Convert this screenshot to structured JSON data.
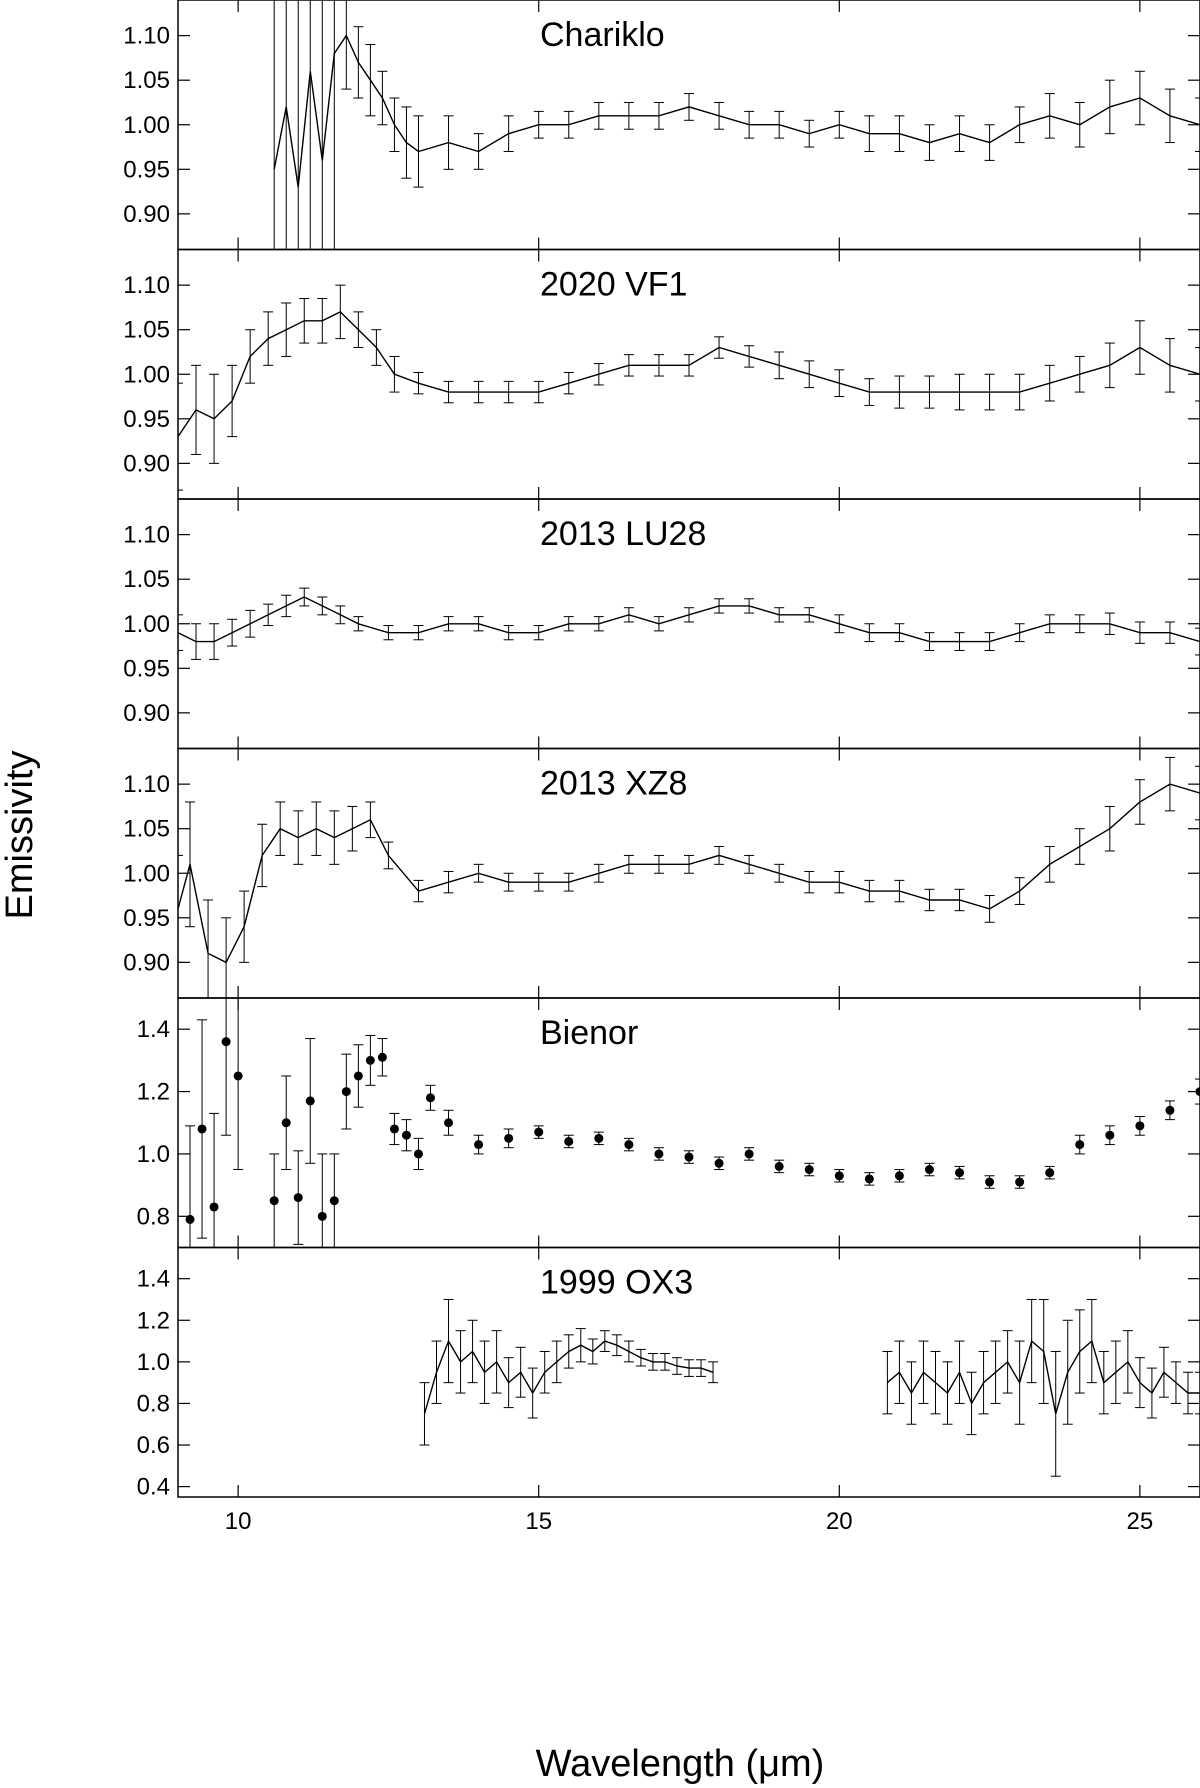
{
  "figure": {
    "xlabel": "Wavelength (μm)",
    "ylabel": "Emissivity"
  },
  "chart_data": [
    {
      "type": "line",
      "title": "Chariklo",
      "xlim": [
        9,
        26
      ],
      "ylim": [
        0.86,
        1.14
      ],
      "yticks": [
        "0.90",
        "0.95",
        "1.00",
        "1.05",
        "1.10"
      ],
      "xticks": [
        "10",
        "15",
        "20",
        "25"
      ],
      "xticks_labeled": false,
      "marker": "none",
      "series": [
        {
          "x": [
            10.6,
            10.8,
            11.0,
            11.2,
            11.4,
            11.6,
            11.8,
            12.0,
            12.2,
            12.4,
            12.6,
            12.8,
            13.0,
            13.5,
            14.0,
            14.5,
            15.0,
            15.5,
            16.0,
            16.5,
            17.0,
            17.5,
            18.0,
            18.5,
            19.0,
            19.5,
            20.0,
            20.5,
            21.0,
            21.5,
            22.0,
            22.5,
            23.0,
            23.5,
            24.0,
            24.5,
            25.0,
            25.5,
            26.0
          ],
          "y": [
            0.95,
            1.02,
            0.93,
            1.06,
            0.96,
            1.08,
            1.1,
            1.07,
            1.05,
            1.03,
            1.0,
            0.98,
            0.97,
            0.98,
            0.97,
            0.99,
            1.0,
            1.0,
            1.01,
            1.01,
            1.01,
            1.02,
            1.01,
            1.0,
            1.0,
            0.99,
            1.0,
            0.99,
            0.99,
            0.98,
            0.99,
            0.98,
            1.0,
            1.01,
            1.0,
            1.02,
            1.03,
            1.01,
            1.0
          ],
          "err": [
            0.3,
            0.3,
            0.3,
            0.3,
            0.3,
            0.3,
            0.06,
            0.04,
            0.04,
            0.03,
            0.03,
            0.04,
            0.04,
            0.03,
            0.02,
            0.02,
            0.015,
            0.015,
            0.015,
            0.015,
            0.015,
            0.015,
            0.015,
            0.015,
            0.015,
            0.015,
            0.015,
            0.02,
            0.02,
            0.02,
            0.02,
            0.02,
            0.02,
            0.025,
            0.025,
            0.03,
            0.03,
            0.03,
            0.03
          ]
        }
      ]
    },
    {
      "type": "line",
      "title": "2020 VF1",
      "xlim": [
        9,
        26
      ],
      "ylim": [
        0.86,
        1.14
      ],
      "yticks": [
        "0.90",
        "0.95",
        "1.00",
        "1.05",
        "1.10"
      ],
      "xticks": [
        "10",
        "15",
        "20",
        "25"
      ],
      "xticks_labeled": false,
      "marker": "none",
      "series": [
        {
          "x": [
            9.0,
            9.3,
            9.6,
            9.9,
            10.2,
            10.5,
            10.8,
            11.1,
            11.4,
            11.7,
            12.0,
            12.3,
            12.6,
            13.0,
            13.5,
            14.0,
            14.5,
            15.0,
            15.5,
            16.0,
            16.5,
            17.0,
            17.5,
            18.0,
            18.5,
            19.0,
            19.5,
            20.0,
            20.5,
            21.0,
            21.5,
            22.0,
            22.5,
            23.0,
            23.5,
            24.0,
            24.5,
            25.0,
            25.5,
            26.0
          ],
          "y": [
            0.93,
            0.96,
            0.95,
            0.97,
            1.02,
            1.04,
            1.05,
            1.06,
            1.06,
            1.07,
            1.05,
            1.03,
            1.0,
            0.99,
            0.98,
            0.98,
            0.98,
            0.98,
            0.99,
            1.0,
            1.01,
            1.01,
            1.01,
            1.03,
            1.02,
            1.01,
            1.0,
            0.99,
            0.98,
            0.98,
            0.98,
            0.98,
            0.98,
            0.98,
            0.99,
            1.0,
            1.01,
            1.03,
            1.01,
            1.0
          ],
          "err": [
            0.06,
            0.05,
            0.05,
            0.04,
            0.03,
            0.03,
            0.03,
            0.025,
            0.025,
            0.03,
            0.02,
            0.02,
            0.02,
            0.012,
            0.012,
            0.012,
            0.012,
            0.012,
            0.012,
            0.012,
            0.012,
            0.012,
            0.012,
            0.012,
            0.012,
            0.015,
            0.015,
            0.015,
            0.015,
            0.018,
            0.018,
            0.02,
            0.02,
            0.02,
            0.02,
            0.02,
            0.025,
            0.03,
            0.03,
            0.03
          ]
        }
      ]
    },
    {
      "type": "line",
      "title": "2013 LU28",
      "xlim": [
        9,
        26
      ],
      "ylim": [
        0.86,
        1.14
      ],
      "yticks": [
        "0.90",
        "0.95",
        "1.00",
        "1.05",
        "1.10"
      ],
      "xticks": [
        "10",
        "15",
        "20",
        "25"
      ],
      "xticks_labeled": false,
      "marker": "none",
      "series": [
        {
          "x": [
            9.0,
            9.3,
            9.6,
            9.9,
            10.2,
            10.5,
            10.8,
            11.1,
            11.4,
            11.7,
            12.0,
            12.5,
            13.0,
            13.5,
            14.0,
            14.5,
            15.0,
            15.5,
            16.0,
            16.5,
            17.0,
            17.5,
            18.0,
            18.5,
            19.0,
            19.5,
            20.0,
            20.5,
            21.0,
            21.5,
            22.0,
            22.5,
            23.0,
            23.5,
            24.0,
            24.5,
            25.0,
            25.5,
            26.0
          ],
          "y": [
            0.99,
            0.98,
            0.98,
            0.99,
            1.0,
            1.01,
            1.02,
            1.03,
            1.02,
            1.01,
            1.0,
            0.99,
            0.99,
            1.0,
            1.0,
            0.99,
            0.99,
            1.0,
            1.0,
            1.01,
            1.0,
            1.01,
            1.02,
            1.02,
            1.01,
            1.01,
            1.0,
            0.99,
            0.99,
            0.98,
            0.98,
            0.98,
            0.99,
            1.0,
            1.0,
            1.0,
            0.99,
            0.99,
            0.98
          ],
          "err": [
            0.02,
            0.02,
            0.02,
            0.015,
            0.015,
            0.012,
            0.012,
            0.01,
            0.01,
            0.01,
            0.008,
            0.008,
            0.008,
            0.008,
            0.008,
            0.008,
            0.008,
            0.008,
            0.008,
            0.008,
            0.008,
            0.008,
            0.008,
            0.008,
            0.008,
            0.008,
            0.01,
            0.01,
            0.01,
            0.01,
            0.01,
            0.01,
            0.01,
            0.01,
            0.01,
            0.012,
            0.012,
            0.012,
            0.015
          ]
        }
      ]
    },
    {
      "type": "line",
      "title": "2013 XZ8",
      "xlim": [
        9,
        26
      ],
      "ylim": [
        0.86,
        1.14
      ],
      "yticks": [
        "0.90",
        "0.95",
        "1.00",
        "1.05",
        "1.10"
      ],
      "xticks": [
        "10",
        "15",
        "20",
        "25"
      ],
      "xticks_labeled": false,
      "marker": "none",
      "series": [
        {
          "x": [
            9.0,
            9.2,
            9.5,
            9.8,
            10.1,
            10.4,
            10.7,
            11.0,
            11.3,
            11.6,
            11.9,
            12.2,
            12.5,
            13.0,
            13.5,
            14.0,
            14.5,
            15.0,
            15.5,
            16.0,
            16.5,
            17.0,
            17.5,
            18.0,
            18.5,
            19.0,
            19.5,
            20.0,
            20.5,
            21.0,
            21.5,
            22.0,
            22.5,
            23.0,
            23.5,
            24.0,
            24.5,
            25.0,
            25.5,
            26.0
          ],
          "y": [
            0.96,
            1.01,
            0.91,
            0.9,
            0.94,
            1.02,
            1.05,
            1.04,
            1.05,
            1.04,
            1.05,
            1.06,
            1.02,
            0.98,
            0.99,
            1.0,
            0.99,
            0.99,
            0.99,
            1.0,
            1.01,
            1.01,
            1.01,
            1.02,
            1.01,
            1.0,
            0.99,
            0.99,
            0.98,
            0.98,
            0.97,
            0.97,
            0.96,
            0.98,
            1.01,
            1.03,
            1.05,
            1.08,
            1.1,
            1.09
          ],
          "err": [
            0.06,
            0.07,
            0.06,
            0.05,
            0.04,
            0.035,
            0.03,
            0.03,
            0.03,
            0.03,
            0.025,
            0.02,
            0.015,
            0.012,
            0.012,
            0.01,
            0.01,
            0.01,
            0.01,
            0.01,
            0.01,
            0.01,
            0.01,
            0.01,
            0.01,
            0.01,
            0.012,
            0.012,
            0.012,
            0.012,
            0.012,
            0.012,
            0.015,
            0.015,
            0.02,
            0.02,
            0.025,
            0.025,
            0.03,
            0.03
          ]
        }
      ]
    },
    {
      "type": "scatter",
      "title": "Bienor",
      "xlim": [
        9,
        26
      ],
      "ylim": [
        0.7,
        1.5
      ],
      "yticks": [
        "0.8",
        "1.0",
        "1.2",
        "1.4"
      ],
      "xticks": [
        "10",
        "15",
        "20",
        "25"
      ],
      "xticks_labeled": false,
      "marker": "dot",
      "series": [
        {
          "x": [
            9.2,
            9.4,
            9.6,
            9.8,
            10.0,
            10.6,
            10.8,
            11.0,
            11.2,
            11.4,
            11.6,
            11.8,
            12.0,
            12.2,
            12.4,
            12.6,
            12.8,
            13.0,
            13.2,
            13.5,
            14.0,
            14.5,
            15.0,
            15.5,
            16.0,
            16.5,
            17.0,
            17.5,
            18.0,
            18.5,
            19.0,
            19.5,
            20.0,
            20.5,
            21.0,
            21.5,
            22.0,
            22.5,
            23.0,
            23.5,
            24.0,
            24.5,
            25.0,
            25.5,
            26.0
          ],
          "y": [
            0.79,
            1.08,
            0.83,
            1.36,
            1.25,
            0.85,
            1.1,
            0.86,
            1.17,
            0.8,
            0.85,
            1.2,
            1.25,
            1.3,
            1.31,
            1.08,
            1.06,
            1.0,
            1.18,
            1.1,
            1.03,
            1.05,
            1.07,
            1.04,
            1.05,
            1.03,
            1.0,
            0.99,
            0.97,
            1.0,
            0.96,
            0.95,
            0.93,
            0.92,
            0.93,
            0.95,
            0.94,
            0.91,
            0.91,
            0.94,
            1.03,
            1.06,
            1.09,
            1.14,
            1.2
          ],
          "err": [
            0.3,
            0.35,
            0.3,
            0.3,
            0.3,
            0.15,
            0.15,
            0.15,
            0.2,
            0.2,
            0.15,
            0.12,
            0.1,
            0.08,
            0.06,
            0.05,
            0.05,
            0.05,
            0.04,
            0.04,
            0.03,
            0.03,
            0.02,
            0.02,
            0.02,
            0.02,
            0.02,
            0.02,
            0.02,
            0.02,
            0.02,
            0.02,
            0.02,
            0.02,
            0.02,
            0.02,
            0.02,
            0.02,
            0.02,
            0.02,
            0.03,
            0.03,
            0.03,
            0.03,
            0.04
          ]
        }
      ]
    },
    {
      "type": "line",
      "title": "1999 OX3",
      "xlim": [
        9,
        26
      ],
      "ylim": [
        0.35,
        1.55
      ],
      "yticks": [
        "0.4",
        "0.6",
        "0.8",
        "1.0",
        "1.2",
        "1.4"
      ],
      "xticks": [
        "10",
        "15",
        "20",
        "25"
      ],
      "xticks_labeled": true,
      "marker": "none",
      "series": [
        {
          "x": [
            13.1,
            13.3,
            13.5,
            13.7,
            13.9,
            14.1,
            14.3,
            14.5,
            14.7,
            14.9,
            15.1,
            15.3,
            15.5,
            15.7,
            15.9,
            16.1,
            16.3,
            16.5,
            16.7,
            16.9,
            17.1,
            17.3,
            17.5,
            17.7,
            17.9
          ],
          "y": [
            0.75,
            0.95,
            1.1,
            1.0,
            1.05,
            0.95,
            1.0,
            0.9,
            0.95,
            0.85,
            0.95,
            1.0,
            1.05,
            1.08,
            1.05,
            1.1,
            1.08,
            1.05,
            1.02,
            1.0,
            1.0,
            0.98,
            0.97,
            0.97,
            0.95
          ],
          "err": [
            0.15,
            0.15,
            0.2,
            0.15,
            0.15,
            0.15,
            0.15,
            0.12,
            0.12,
            0.12,
            0.1,
            0.1,
            0.08,
            0.08,
            0.06,
            0.05,
            0.05,
            0.05,
            0.04,
            0.04,
            0.04,
            0.04,
            0.04,
            0.04,
            0.05
          ]
        },
        {
          "x": [
            20.8,
            21.0,
            21.2,
            21.4,
            21.6,
            21.8,
            22.0,
            22.2,
            22.4,
            22.6,
            22.8,
            23.0,
            23.2,
            23.4,
            23.6,
            23.8,
            24.0,
            24.2,
            24.4,
            24.6,
            24.8,
            25.0,
            25.2,
            25.4,
            25.6,
            25.8,
            26.0
          ],
          "y": [
            0.9,
            0.95,
            0.85,
            0.95,
            0.9,
            0.85,
            0.95,
            0.8,
            0.9,
            0.95,
            1.0,
            0.9,
            1.1,
            1.05,
            0.75,
            0.95,
            1.05,
            1.1,
            0.9,
            0.95,
            1.0,
            0.9,
            0.85,
            0.95,
            0.9,
            0.85,
            0.85
          ],
          "err": [
            0.15,
            0.15,
            0.15,
            0.15,
            0.15,
            0.15,
            0.15,
            0.15,
            0.15,
            0.15,
            0.15,
            0.2,
            0.2,
            0.25,
            0.3,
            0.25,
            0.2,
            0.2,
            0.15,
            0.15,
            0.15,
            0.12,
            0.12,
            0.12,
            0.1,
            0.1,
            0.1
          ]
        }
      ]
    }
  ]
}
